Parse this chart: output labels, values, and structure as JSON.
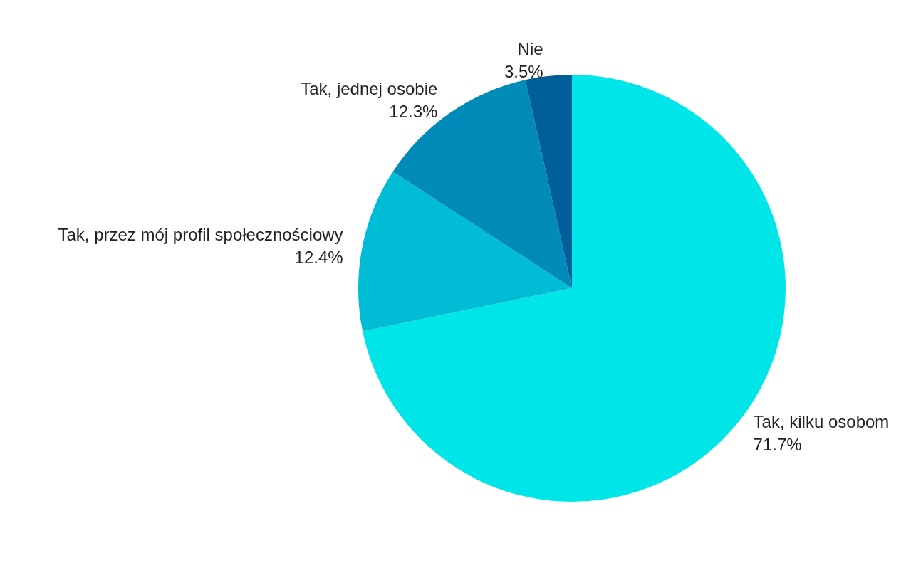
{
  "chart_data": {
    "type": "pie",
    "categories": [
      "Tak, kilku osobom",
      "Tak, przez mój profil społecznościowy",
      "Tak, jednej osobie",
      "Nie"
    ],
    "values": [
      71.7,
      12.4,
      12.3,
      3.5
    ],
    "colors": [
      "#00e5e8",
      "#00bcd4",
      "#008bb9",
      "#005f99"
    ],
    "value_labels": [
      "71.7%",
      "12.4%",
      "12.3%",
      "3.5%"
    ]
  }
}
